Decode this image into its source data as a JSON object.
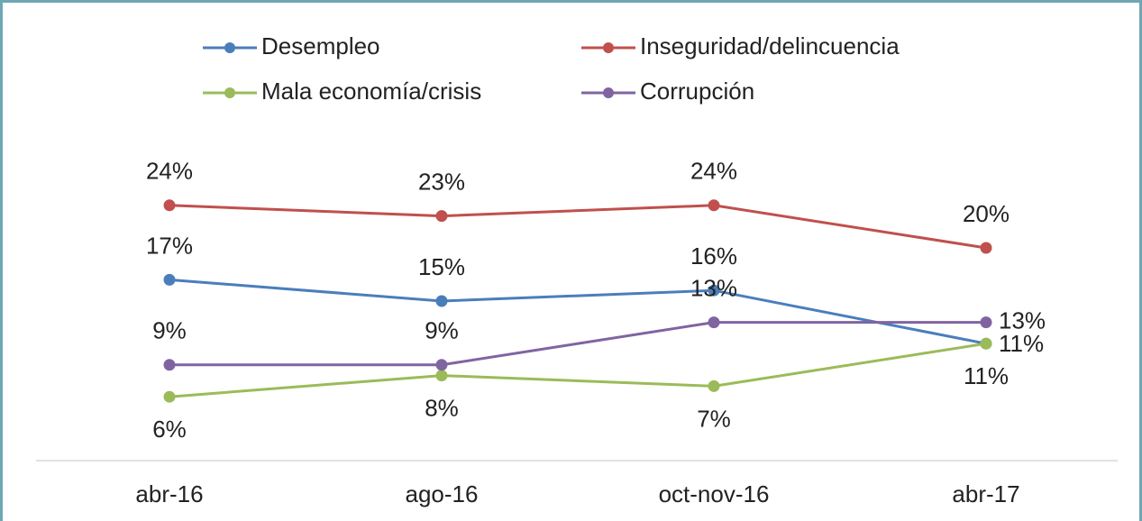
{
  "chart_data": {
    "type": "line",
    "categories": [
      "abr-16",
      "ago-16",
      "oct-nov-16",
      "abr-17"
    ],
    "series": [
      {
        "name": "Desempleo",
        "color": "#4a7ebb",
        "values": [
          17,
          15,
          16,
          11
        ],
        "value_labels": [
          "17%",
          "15%",
          "16%",
          "11%"
        ]
      },
      {
        "name": "Inseguridad/delincuencia",
        "color": "#c0504d",
        "values": [
          24,
          23,
          24,
          20
        ],
        "value_labels": [
          "24%",
          "23%",
          "24%",
          "20%"
        ]
      },
      {
        "name": "Mala economía/crisis",
        "color": "#9bbb59",
        "values": [
          6,
          8,
          7,
          11
        ],
        "value_labels": [
          "6%",
          "8%",
          "7%",
          "11%"
        ]
      },
      {
        "name": "Corrupción",
        "color": "#8064a2",
        "values": [
          9,
          9,
          13,
          13
        ],
        "value_labels": [
          "9%",
          "9%",
          "13%",
          "13%"
        ]
      }
    ],
    "ylim": [
      0,
      30
    ],
    "grid": false,
    "legend": "top"
  }
}
